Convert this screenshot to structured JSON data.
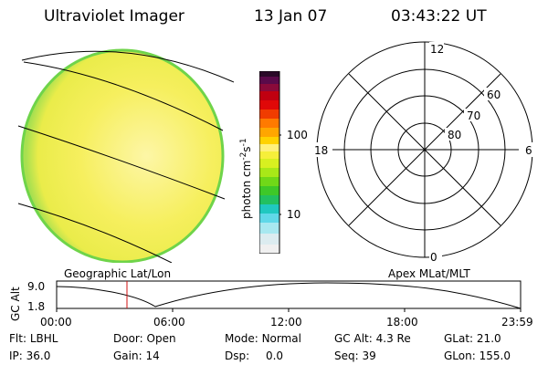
{
  "header": {
    "instrument": "Ultraviolet Imager",
    "date": "13 Jan 07",
    "time": "03:43:22 UT"
  },
  "colorbar": {
    "unit_label": "photon cm",
    "unit_sup1": "-2",
    "unit_mid": "s",
    "unit_sup2": "-1",
    "ticks": [
      "100",
      "10"
    ]
  },
  "polar": {
    "mlt_labels": {
      "top": "12",
      "bottom": "0",
      "left": "18",
      "right": "6"
    },
    "lat_labels": [
      "60",
      "70",
      "80"
    ]
  },
  "panels": {
    "left_caption": "Geographic Lat/Lon",
    "right_caption": "Apex MLat/MLT"
  },
  "orbit": {
    "ylabel": "GC Alt",
    "yticks": [
      "9.0",
      "1.8"
    ],
    "xticks": [
      "00:00",
      "06:00",
      "12:00",
      "18:00",
      "23:59"
    ]
  },
  "status": {
    "flt": {
      "label": "Flt:",
      "value": "LBHL"
    },
    "ip": {
      "label": "IP:",
      "value": "36.0"
    },
    "door": {
      "label": "Door:",
      "value": "Open"
    },
    "gain": {
      "label": "Gain:",
      "value": "14"
    },
    "mode": {
      "label": "Mode:",
      "value": "Normal"
    },
    "dsp": {
      "label": "Dsp:",
      "value": "0.0"
    },
    "gcalt": {
      "label": "GC Alt:",
      "value": "4.3 Re"
    },
    "seq": {
      "label": "Seq:",
      "value": "39"
    },
    "glat": {
      "label": "GLat:",
      "value": "21.0"
    },
    "glon": {
      "label": "GLon:",
      "value": "155.0"
    }
  },
  "colors": {
    "disk_fill": "#f5ee55",
    "disk_edge": "#7fd84a",
    "disk_center": "#fbf28e",
    "marker": "#d01010"
  }
}
